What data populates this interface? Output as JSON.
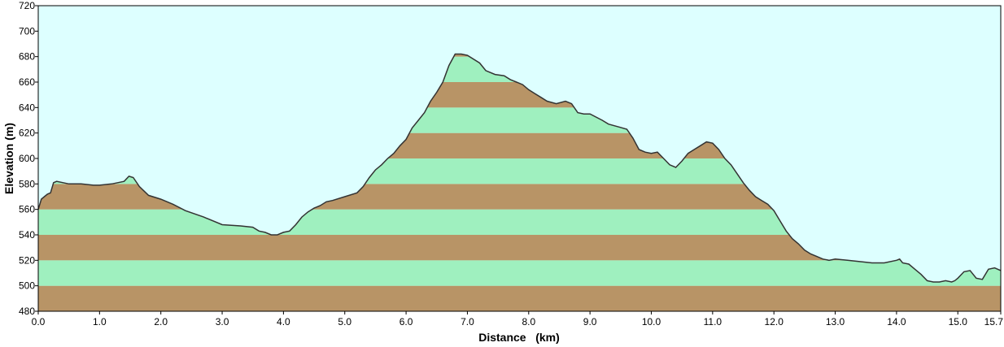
{
  "chart_data": {
    "type": "area",
    "title": "",
    "xlabel": "Distance   (km)",
    "ylabel": "Elevation (m)",
    "xlim": [
      0,
      15.7
    ],
    "ylim": [
      480,
      720
    ],
    "x_ticks": [
      0.0,
      1.0,
      2.0,
      3.0,
      4.0,
      5.0,
      6.0,
      7.0,
      8.0,
      9.0,
      10.0,
      11.0,
      12.0,
      13.0,
      14.0,
      15.0,
      15.7
    ],
    "x_tick_labels": [
      "0.0",
      "1.0",
      "2.0",
      "3.0",
      "4.0",
      "5.0",
      "6.0",
      "7.0",
      "8.0",
      "9.0",
      "10.0",
      "11.0",
      "12.0",
      "13.0",
      "14.0",
      "15.0",
      "15.7"
    ],
    "y_ticks": [
      480,
      500,
      520,
      540,
      560,
      580,
      600,
      620,
      640,
      660,
      680,
      700,
      720
    ],
    "y_tick_labels": [
      "480",
      "500",
      "520",
      "540",
      "560",
      "580",
      "600",
      "620",
      "640",
      "660",
      "680",
      "700",
      "720"
    ],
    "grid": false,
    "band_height": 20,
    "colors": {
      "sky": "#ddffff",
      "band_brown": "#b89466",
      "band_green": "#9ff0bf",
      "profile_line": "#333333",
      "frame": "#000000"
    },
    "series": [
      {
        "x": [
          0,
          0.05,
          0.1,
          0.15,
          0.2,
          0.25,
          0.3,
          0.5,
          0.7,
          0.9,
          1.0,
          1.2,
          1.4,
          1.48,
          1.55,
          1.65,
          1.8,
          2.0,
          2.2,
          2.4,
          2.7,
          3.0,
          3.3,
          3.5,
          3.6,
          3.7,
          3.8,
          3.9,
          4.0,
          4.1,
          4.2,
          4.3,
          4.4,
          4.5,
          4.6,
          4.7,
          4.8,
          5.0,
          5.2,
          5.3,
          5.4,
          5.5,
          5.6,
          5.7,
          5.8,
          5.9,
          6.0,
          6.1,
          6.2,
          6.3,
          6.4,
          6.5,
          6.6,
          6.7,
          6.8,
          6.9,
          7.0,
          7.2,
          7.3,
          7.45,
          7.6,
          7.7,
          7.8,
          7.9,
          8.0,
          8.1,
          8.2,
          8.3,
          8.45,
          8.6,
          8.7,
          8.8,
          8.9,
          9.0,
          9.2,
          9.3,
          9.45,
          9.6,
          9.7,
          9.8,
          9.9,
          10.0,
          10.1,
          10.2,
          10.3,
          10.4,
          10.5,
          10.6,
          10.7,
          10.8,
          10.9,
          11.0,
          11.1,
          11.2,
          11.3,
          11.4,
          11.5,
          11.6,
          11.7,
          11.8,
          11.9,
          12.0,
          12.1,
          12.2,
          12.3,
          12.4,
          12.5,
          12.6,
          12.7,
          12.8,
          12.9,
          13.0,
          13.2,
          13.4,
          13.6,
          13.8,
          14.0,
          14.05,
          14.1,
          14.2,
          14.3,
          14.4,
          14.5,
          14.6,
          14.7,
          14.8,
          14.9,
          14.95,
          15.0,
          15.1,
          15.2,
          15.3,
          15.4,
          15.5,
          15.6,
          15.7
        ],
        "y": [
          560,
          568,
          570,
          572,
          573,
          581,
          582,
          580,
          580,
          579,
          579,
          580,
          582,
          586,
          585,
          578,
          571,
          568,
          564,
          559,
          554,
          548,
          547,
          546,
          543,
          542,
          540,
          540,
          542,
          543,
          548,
          554,
          558,
          561,
          563,
          566,
          567,
          570,
          573,
          578,
          585,
          591,
          595,
          600,
          604,
          610,
          615,
          624,
          630,
          636,
          645,
          652,
          660,
          673,
          682,
          682,
          681,
          675,
          669,
          666,
          665,
          662,
          660,
          658,
          654,
          651,
          648,
          645,
          643,
          645,
          643,
          636,
          635,
          635,
          630,
          627,
          625,
          623,
          616,
          607,
          605,
          604,
          605,
          600,
          595,
          593,
          598,
          604,
          607,
          610,
          613,
          612,
          607,
          600,
          595,
          588,
          581,
          575,
          570,
          567,
          564,
          559,
          551,
          543,
          537,
          533,
          528,
          525,
          523,
          521,
          520,
          521,
          520,
          519,
          518,
          518,
          520,
          521,
          518,
          517,
          513,
          509,
          504,
          503,
          503,
          504,
          503,
          504,
          506,
          511,
          512,
          506,
          505,
          513,
          514,
          512
        ]
      }
    ]
  }
}
